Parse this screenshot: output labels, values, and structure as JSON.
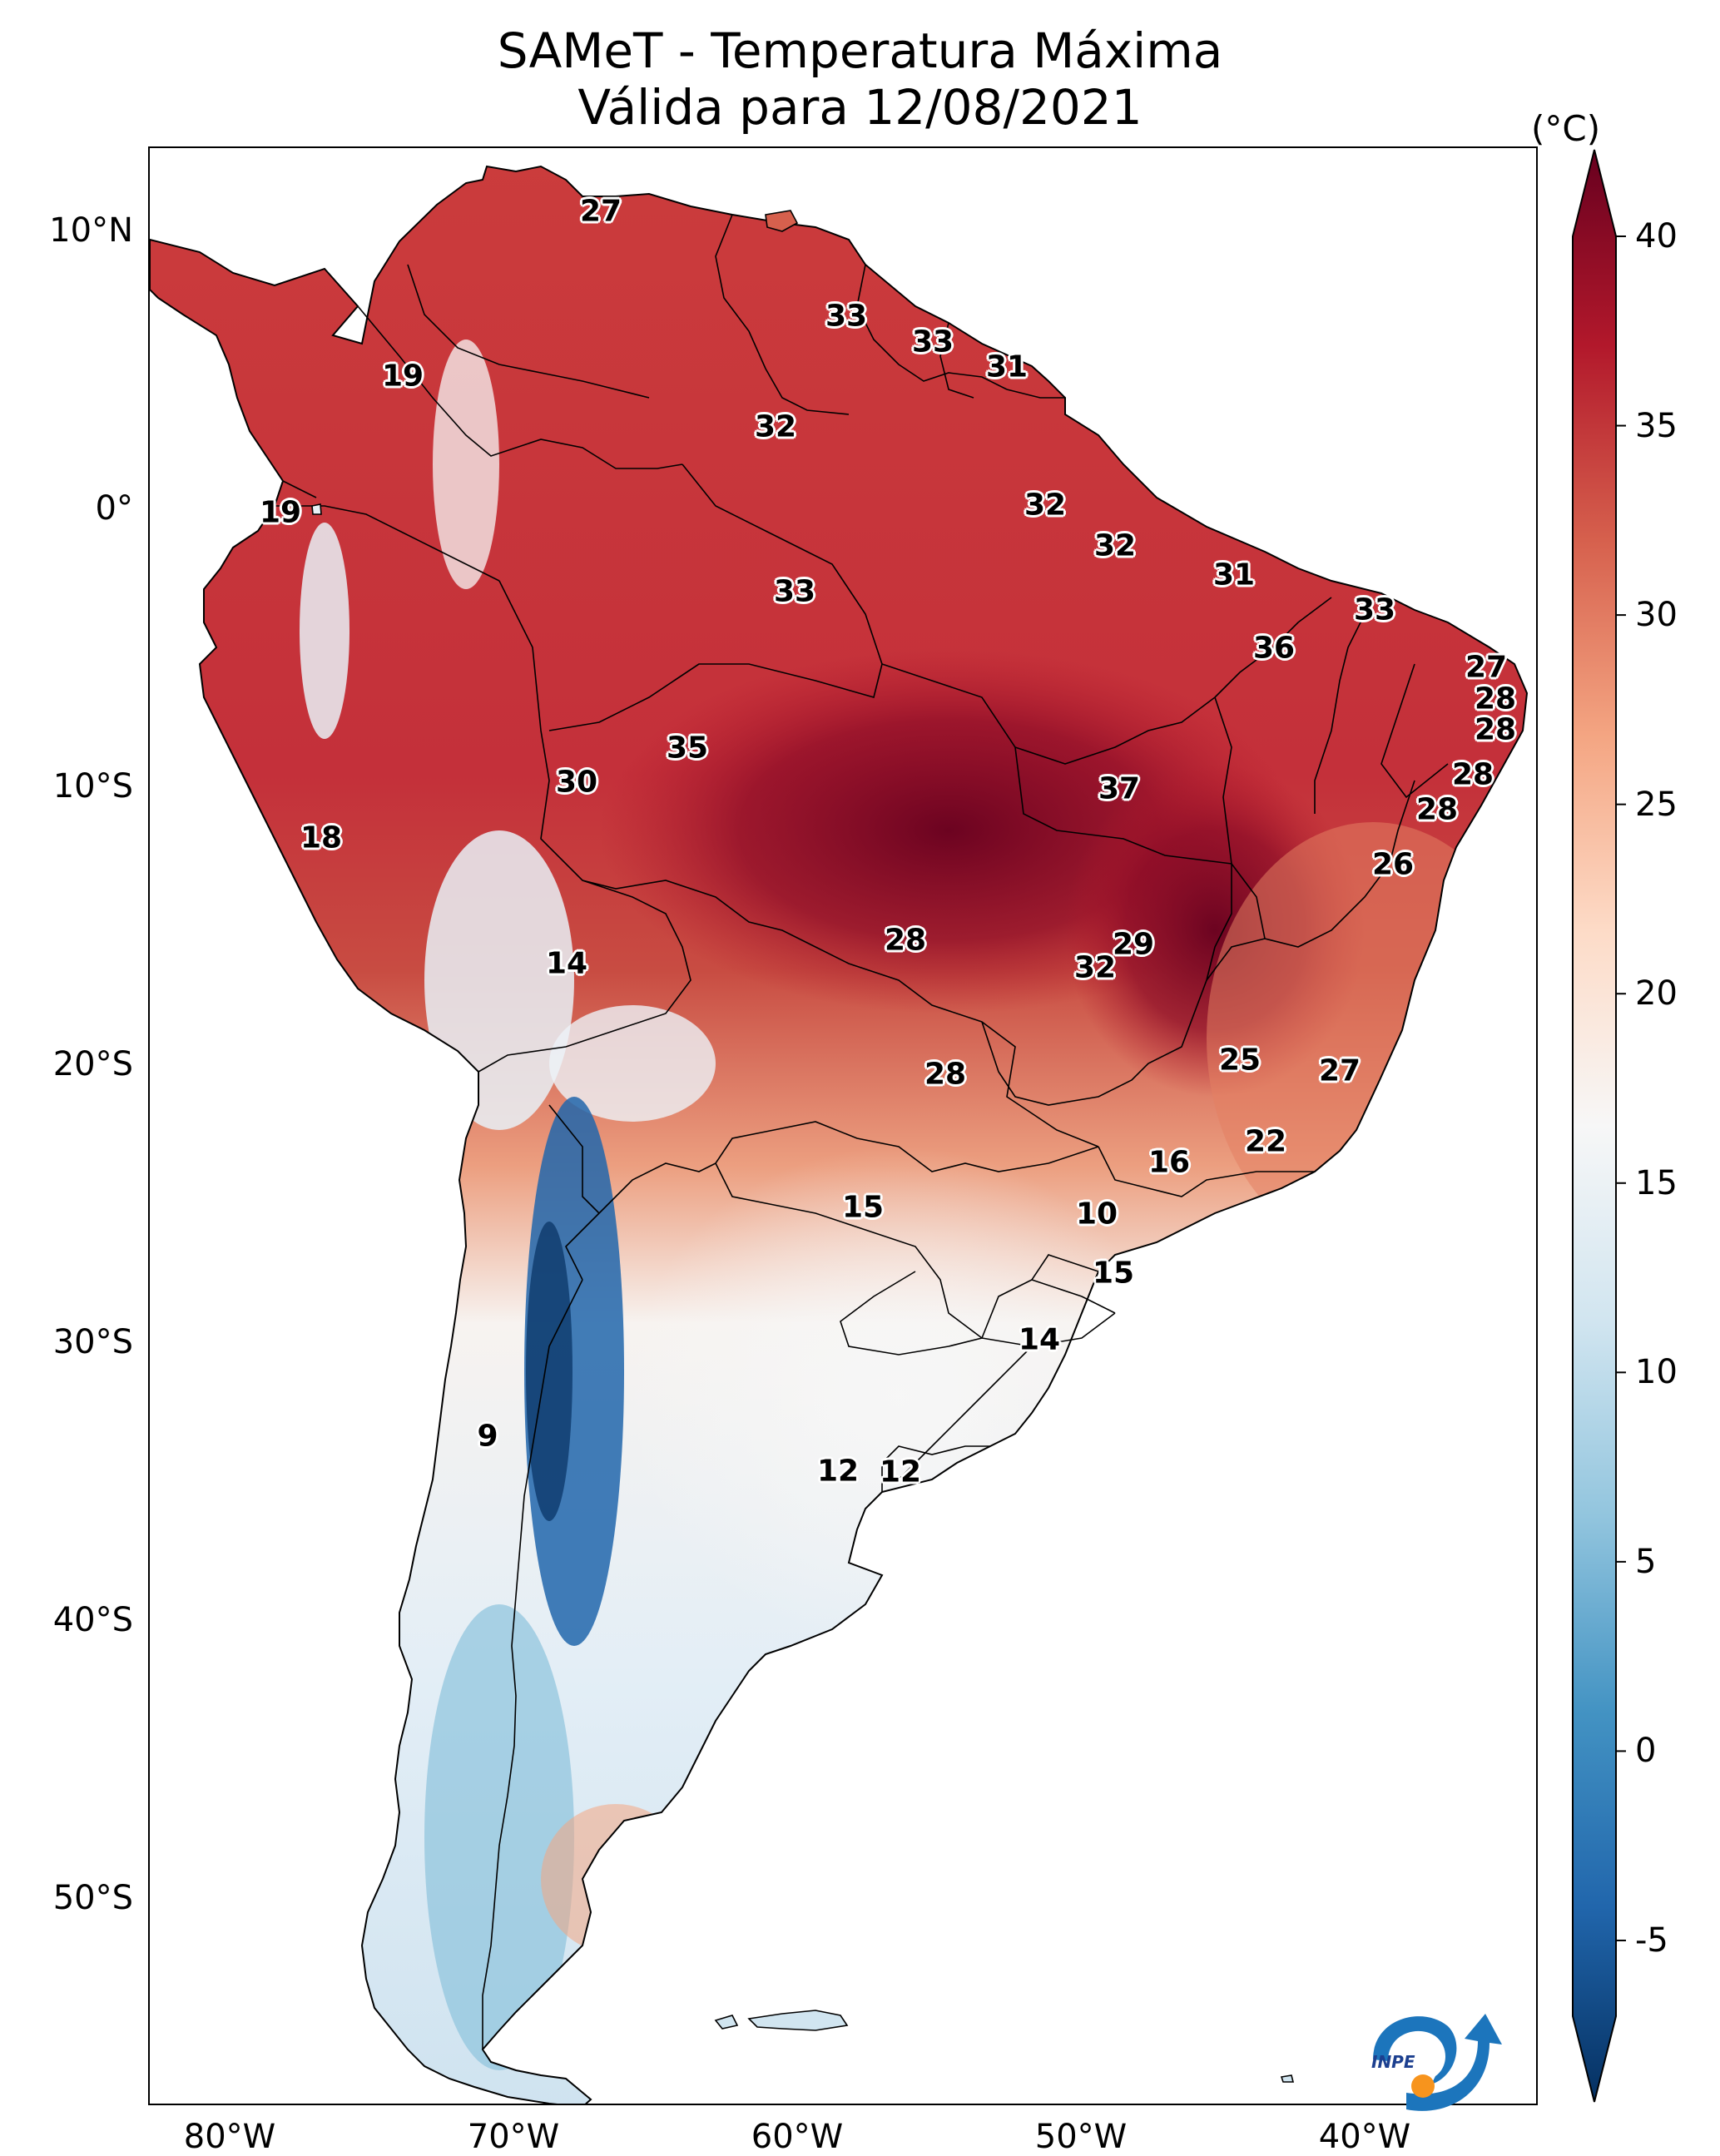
{
  "title": {
    "line1": "SAMeT - Temperatura Máxima",
    "line2": "Válida para 12/08/2021"
  },
  "map": {
    "lat_labels": [
      "10°N",
      "0°",
      "10°S",
      "20°S",
      "30°S",
      "40°S",
      "50°S"
    ],
    "lon_labels": [
      "80°W",
      "70°W",
      "60°W",
      "50°W",
      "40°W"
    ],
    "city_values": [
      {
        "value": "27"
      },
      {
        "value": "19"
      },
      {
        "value": "19"
      },
      {
        "value": "18"
      },
      {
        "value": "33"
      },
      {
        "value": "33"
      },
      {
        "value": "31"
      },
      {
        "value": "32"
      },
      {
        "value": "32"
      },
      {
        "value": "32"
      },
      {
        "value": "31"
      },
      {
        "value": "33"
      },
      {
        "value": "33"
      },
      {
        "value": "36"
      },
      {
        "value": "27"
      },
      {
        "value": "28"
      },
      {
        "value": "28"
      },
      {
        "value": "28"
      },
      {
        "value": "28"
      },
      {
        "value": "35"
      },
      {
        "value": "30"
      },
      {
        "value": "37"
      },
      {
        "value": "26"
      },
      {
        "value": "14"
      },
      {
        "value": "28"
      },
      {
        "value": "29"
      },
      {
        "value": "32"
      },
      {
        "value": "28"
      },
      {
        "value": "25"
      },
      {
        "value": "27"
      },
      {
        "value": "22"
      },
      {
        "value": "16"
      },
      {
        "value": "15"
      },
      {
        "value": "10"
      },
      {
        "value": "15"
      },
      {
        "value": "14"
      },
      {
        "value": "9"
      },
      {
        "value": "12"
      },
      {
        "value": "12"
      }
    ]
  },
  "colorbar": {
    "unit": "(°C)",
    "ticks": [
      "40",
      "35",
      "30",
      "25",
      "20",
      "15",
      "10",
      "5",
      "0",
      "-5"
    ],
    "min": -7,
    "max": 40,
    "colors": [
      "#053061",
      "#2166ac",
      "#4393c3",
      "#92c5de",
      "#d1e5f0",
      "#f7f7f7",
      "#fddbc7",
      "#f4a582",
      "#d6604d",
      "#b2182b",
      "#67001f"
    ]
  },
  "logo": {
    "text": "INPE"
  }
}
